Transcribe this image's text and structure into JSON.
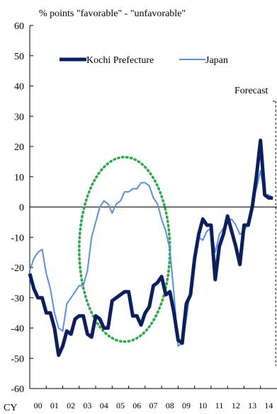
{
  "chart_data": {
    "type": "line",
    "ylabel": "% points \"favorable\" - \"unfavorable\"",
    "ylim": [
      -60,
      60
    ],
    "yticks": [
      60,
      50,
      40,
      30,
      20,
      10,
      0,
      -10,
      -20,
      -30,
      -40,
      -50,
      -60
    ],
    "x_prefix": "CY",
    "xlim": [
      2000,
      2015
    ],
    "xtick_years": [
      2000,
      2001,
      2002,
      2003,
      2004,
      2005,
      2006,
      2007,
      2008,
      2009,
      2010,
      2011,
      2012,
      2013,
      2014
    ],
    "xtick_labels": [
      "00",
      "01",
      "02",
      "03",
      "04",
      "05",
      "06",
      "07",
      "08",
      "09",
      "10",
      "11",
      "12",
      "13",
      "14"
    ],
    "annotation": "Forecast",
    "forecast_start": 2014.75,
    "legend_position": "top",
    "series": [
      {
        "name": "Kochi Prefecture",
        "color": "#0b1f5c",
        "points": [
          [
            2000.0,
            -22
          ],
          [
            2000.25,
            -27
          ],
          [
            2000.5,
            -30
          ],
          [
            2000.75,
            -30
          ],
          [
            2001.0,
            -35
          ],
          [
            2001.25,
            -35
          ],
          [
            2001.5,
            -40
          ],
          [
            2001.75,
            -49
          ],
          [
            2002.0,
            -46
          ],
          [
            2002.25,
            -41
          ],
          [
            2002.5,
            -42
          ],
          [
            2002.75,
            -37
          ],
          [
            2003.0,
            -36
          ],
          [
            2003.25,
            -36
          ],
          [
            2003.5,
            -42
          ],
          [
            2003.75,
            -43
          ],
          [
            2004.0,
            -36
          ],
          [
            2004.25,
            -37
          ],
          [
            2004.5,
            -40
          ],
          [
            2004.75,
            -40
          ],
          [
            2005.0,
            -31
          ],
          [
            2005.25,
            -30
          ],
          [
            2005.5,
            -29
          ],
          [
            2005.75,
            -28
          ],
          [
            2006.0,
            -28
          ],
          [
            2006.25,
            -36
          ],
          [
            2006.5,
            -36
          ],
          [
            2006.75,
            -39
          ],
          [
            2007.0,
            -35
          ],
          [
            2007.25,
            -33
          ],
          [
            2007.5,
            -26
          ],
          [
            2007.75,
            -25
          ],
          [
            2008.0,
            -23
          ],
          [
            2008.25,
            -29
          ],
          [
            2008.5,
            -28
          ],
          [
            2008.75,
            -35
          ],
          [
            2009.0,
            -44
          ],
          [
            2009.25,
            -45
          ],
          [
            2009.5,
            -32
          ],
          [
            2009.75,
            -29
          ],
          [
            2010.0,
            -17
          ],
          [
            2010.25,
            -9
          ],
          [
            2010.5,
            -4
          ],
          [
            2010.75,
            -6
          ],
          [
            2011.0,
            -6
          ],
          [
            2011.25,
            -24
          ],
          [
            2011.5,
            -13
          ],
          [
            2011.75,
            -9
          ],
          [
            2012.0,
            -3
          ],
          [
            2012.25,
            -8
          ],
          [
            2012.5,
            -13
          ],
          [
            2012.75,
            -19
          ],
          [
            2013.0,
            -6
          ],
          [
            2013.25,
            -6
          ],
          [
            2013.5,
            0
          ],
          [
            2013.75,
            10
          ],
          [
            2014.0,
            22
          ],
          [
            2014.25,
            4
          ],
          [
            2014.5,
            3
          ],
          [
            2014.75,
            3
          ]
        ]
      },
      {
        "name": "Japan",
        "color": "#5b8fd6",
        "points": [
          [
            2000.0,
            -21
          ],
          [
            2000.25,
            -17
          ],
          [
            2000.5,
            -15
          ],
          [
            2000.75,
            -14
          ],
          [
            2001.0,
            -22
          ],
          [
            2001.25,
            -27
          ],
          [
            2001.5,
            -35
          ],
          [
            2001.75,
            -40
          ],
          [
            2002.0,
            -41
          ],
          [
            2002.25,
            -32
          ],
          [
            2002.5,
            -30
          ],
          [
            2002.75,
            -28
          ],
          [
            2003.0,
            -26
          ],
          [
            2003.25,
            -26
          ],
          [
            2003.5,
            -21
          ],
          [
            2003.75,
            -10
          ],
          [
            2004.0,
            -5
          ],
          [
            2004.25,
            0
          ],
          [
            2004.5,
            2
          ],
          [
            2004.75,
            1
          ],
          [
            2005.0,
            -2
          ],
          [
            2005.25,
            1
          ],
          [
            2005.5,
            2
          ],
          [
            2005.75,
            5
          ],
          [
            2006.0,
            5
          ],
          [
            2006.25,
            6
          ],
          [
            2006.5,
            6
          ],
          [
            2006.75,
            8
          ],
          [
            2007.0,
            8
          ],
          [
            2007.25,
            7
          ],
          [
            2007.5,
            3
          ],
          [
            2007.75,
            1
          ],
          [
            2008.0,
            -4
          ],
          [
            2008.25,
            -8
          ],
          [
            2008.5,
            -14
          ],
          [
            2008.75,
            -29
          ],
          [
            2009.0,
            -46
          ],
          [
            2009.25,
            -45
          ],
          [
            2009.5,
            -37
          ],
          [
            2009.75,
            -27
          ],
          [
            2010.0,
            -16
          ],
          [
            2010.25,
            -10
          ],
          [
            2010.5,
            -11
          ],
          [
            2010.75,
            -8
          ],
          [
            2011.0,
            -7
          ],
          [
            2011.25,
            -15
          ],
          [
            2011.5,
            -9
          ],
          [
            2011.75,
            -7
          ],
          [
            2012.0,
            -5
          ],
          [
            2012.25,
            -4
          ],
          [
            2012.5,
            -6
          ],
          [
            2012.75,
            -9
          ],
          [
            2013.0,
            -8
          ],
          [
            2013.25,
            -5
          ],
          [
            2013.5,
            1
          ],
          [
            2013.75,
            6
          ],
          [
            2014.0,
            12
          ],
          [
            2014.25,
            4
          ],
          [
            2014.5,
            4
          ],
          [
            2014.75,
            3
          ]
        ]
      }
    ],
    "highlight_ellipse": {
      "color": "#2aa84a",
      "x_center": 2005.75,
      "y_center": -14,
      "x_radius": 2.75,
      "y_radius": 30.5
    }
  }
}
